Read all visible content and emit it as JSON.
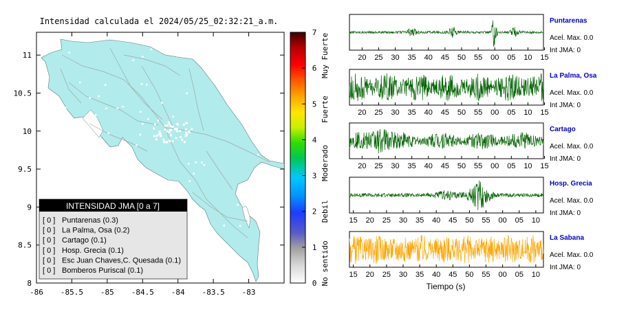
{
  "map": {
    "title": "Intensidad calculada el 2024/05/25_02:32:21_a.m.",
    "x_ticks": [
      "-86",
      "-85.5",
      "-85",
      "-84.5",
      "-84",
      "-83.5",
      "-83"
    ],
    "y_ticks": [
      "11",
      "10.5",
      "10",
      "9.5",
      "9",
      "8.5",
      "8"
    ],
    "x_range": [
      -86,
      -82.5
    ],
    "y_range": [
      8,
      11.3
    ],
    "land_color": "#b2ebeb",
    "legend": {
      "title": "INTENSIDAD JMA [0 a 7]",
      "items": [
        {
          "int": "[ 0 ]",
          "label": "Puntarenas (0.3)"
        },
        {
          "int": "[ 0 ]",
          "label": "La Palma, Osa (0.2)"
        },
        {
          "int": "[ 0 ]",
          "label": "Cartago (0.1)"
        },
        {
          "int": "[ 0 ]",
          "label": "Hosp. Grecia (0.1)"
        },
        {
          "int": "[ 0 ]",
          "label": "Esc Juan Chaves,C. Quesada (0.1)"
        },
        {
          "int": "[ 0 ]",
          "label": "Bomberos Puriscal (0.1)"
        }
      ]
    }
  },
  "colorbar": {
    "ticks": [
      "7",
      "6",
      "5",
      "4",
      "3",
      "2",
      "1",
      "0"
    ],
    "range": [
      0,
      7
    ],
    "labels": [
      "Muy Fuerte",
      "Fuerte",
      "Moderado",
      "Debil",
      "No sentido"
    ]
  },
  "chart_data": [
    {
      "type": "line",
      "title": "Puntarenas",
      "x_ticks": [
        "20",
        "25",
        "30",
        "35",
        "40",
        "45",
        "50",
        "55",
        "00",
        "05",
        "10",
        "15"
      ],
      "color": "#006400",
      "stats": [
        "Acel. Max. 0.0",
        "Int JMA: 0"
      ]
    },
    {
      "type": "line",
      "title": "La Palma, Osa",
      "x_ticks": [
        "20",
        "25",
        "30",
        "35",
        "40",
        "45",
        "50",
        "55",
        "00",
        "05",
        "10",
        "15"
      ],
      "color": "#006400",
      "stats": [
        "Acel. Max. 0.0",
        "Int JMA: 0"
      ]
    },
    {
      "type": "line",
      "title": "Cartago",
      "x_ticks": [
        "20",
        "25",
        "30",
        "35",
        "40",
        "45",
        "50",
        "55",
        "00",
        "05",
        "10",
        "15"
      ],
      "color": "#006400",
      "stats": [
        "Acel. Max. 0.0",
        "Int JMA: 0"
      ]
    },
    {
      "type": "line",
      "title": "Hosp. Grecia",
      "x_ticks": [
        "15",
        "20",
        "25",
        "30",
        "35",
        "40",
        "45",
        "50",
        "55",
        "00",
        "05",
        "10"
      ],
      "color": "#006400",
      "stats": [
        "Acel. Max. 0.0",
        "Int JMA: 0"
      ]
    },
    {
      "type": "line",
      "title": "La Sabana",
      "x_ticks": [
        "15",
        "20",
        "25",
        "30",
        "35",
        "40",
        "45",
        "50",
        "55",
        "00",
        "05",
        "10"
      ],
      "xlabel": "Tiempo (s)",
      "color": "#ffa500",
      "stats": [
        "Acel. Max. 0.0",
        "Int JMA: 0"
      ]
    }
  ]
}
